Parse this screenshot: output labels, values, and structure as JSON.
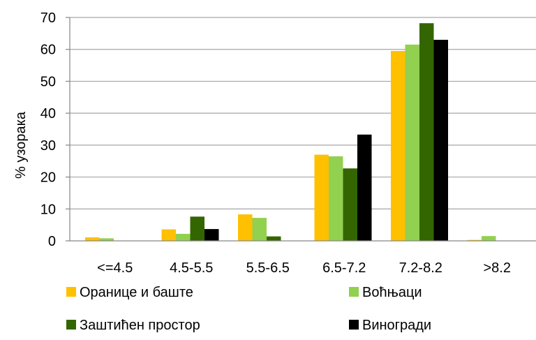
{
  "chart_data": {
    "type": "bar",
    "ylabel": "% узорака",
    "xlabel": "",
    "ylim": [
      0,
      70
    ],
    "yticks": [
      0,
      10,
      20,
      30,
      40,
      50,
      60,
      70
    ],
    "grid": true,
    "legend_position": "bottom",
    "categories": [
      "<=4.5",
      "4.5-5.5",
      "5.5-6.5",
      "6.5-7.2",
      "7.2-8.2",
      ">8.2"
    ],
    "series": [
      {
        "name": "Оранице и баште",
        "color": "#FFC000",
        "values": [
          1.1,
          3.6,
          8.3,
          27.0,
          59.5,
          0.3
        ]
      },
      {
        "name": "Воћњаци",
        "color": "#92D050",
        "values": [
          0.8,
          2.2,
          7.2,
          26.5,
          61.5,
          1.5
        ]
      },
      {
        "name": "Заштићен простор",
        "color": "#336600",
        "values": [
          0,
          7.6,
          1.4,
          22.7,
          68.2,
          0
        ]
      },
      {
        "name": "Виногради",
        "color": "#000000",
        "values": [
          0,
          3.7,
          0,
          33.3,
          63.0,
          0
        ]
      }
    ]
  }
}
